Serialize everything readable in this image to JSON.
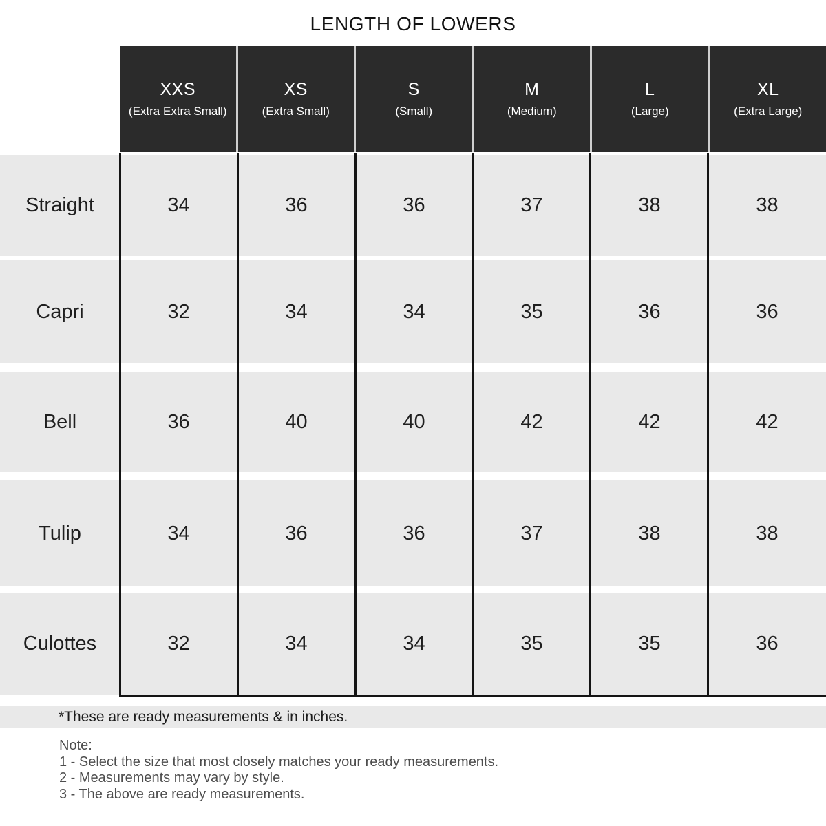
{
  "title": "LENGTH OF LOWERS",
  "size_chart": {
    "columns": [
      {
        "code": "XXS",
        "label": "(Extra Extra Small)"
      },
      {
        "code": "XS",
        "label": "(Extra Small)"
      },
      {
        "code": "S",
        "label": "(Small)"
      },
      {
        "code": "M",
        "label": "(Medium)"
      },
      {
        "code": "L",
        "label": "(Large)"
      },
      {
        "code": "XL",
        "label": "(Extra Large)"
      }
    ],
    "rows": [
      {
        "label": "Straight",
        "values": [
          "34",
          "36",
          "36",
          "37",
          "38",
          "38"
        ]
      },
      {
        "label": "Capri",
        "values": [
          "32",
          "34",
          "34",
          "35",
          "36",
          "36"
        ]
      },
      {
        "label": "Bell",
        "values": [
          "36",
          "40",
          "40",
          "42",
          "42",
          "42"
        ]
      },
      {
        "label": "Tulip",
        "values": [
          "34",
          "36",
          "36",
          "37",
          "38",
          "38"
        ]
      },
      {
        "label": "Culottes",
        "values": [
          "32",
          "34",
          "34",
          "35",
          "35",
          "36"
        ]
      }
    ],
    "units": "inches"
  },
  "footnote": "*These are ready measurements & in inches.",
  "note": {
    "heading": "Note:",
    "items": [
      "1 - Select the size that most closely matches your ready measurements.",
      "2 - Measurements may vary by style.",
      "3 - The above are ready measurements."
    ]
  },
  "colors": {
    "header_bg": "#2b2b2b",
    "header_text": "#ffffff",
    "row_bg": "#e9e9e9",
    "grid_line": "#141414",
    "cell_text": "#1f1f1f",
    "note_text": "#4d4d4d"
  }
}
